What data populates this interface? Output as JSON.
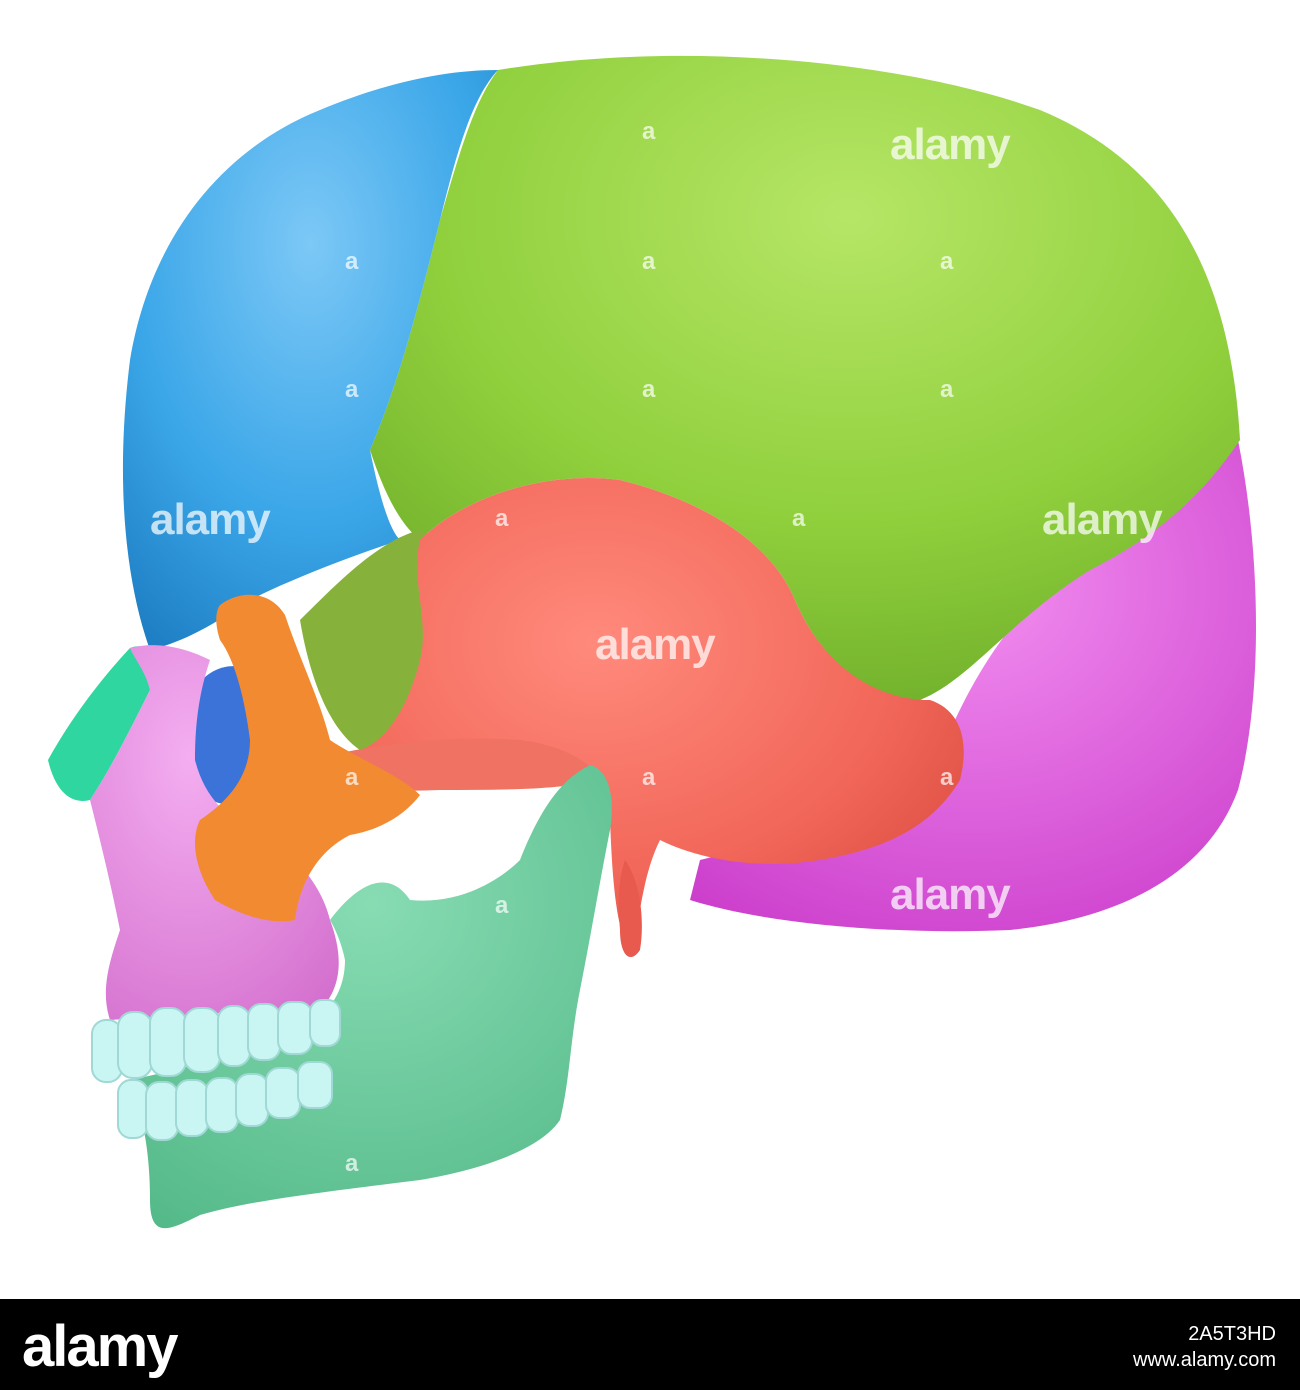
{
  "image": {
    "subject": "skull-lateral-view",
    "colors": {
      "frontal": "#3aa6e8",
      "parietal": "#8fcf3c",
      "temporal": "#f2685a",
      "occipital": "#e15ee0",
      "zygomatic": "#f28a32",
      "maxilla": "#e88be4",
      "nasal": "#2fd6a0",
      "mandible": "#6ccfa0",
      "teeth": "#c9f6f3",
      "sphenoid": "#86b23c",
      "orbit": "#3c73d8"
    }
  },
  "watermark": {
    "text": "alamy",
    "letter": "a"
  },
  "footer": {
    "logo": "alamy",
    "image_id": "2A5T3HD",
    "url": "www.alamy.com"
  }
}
